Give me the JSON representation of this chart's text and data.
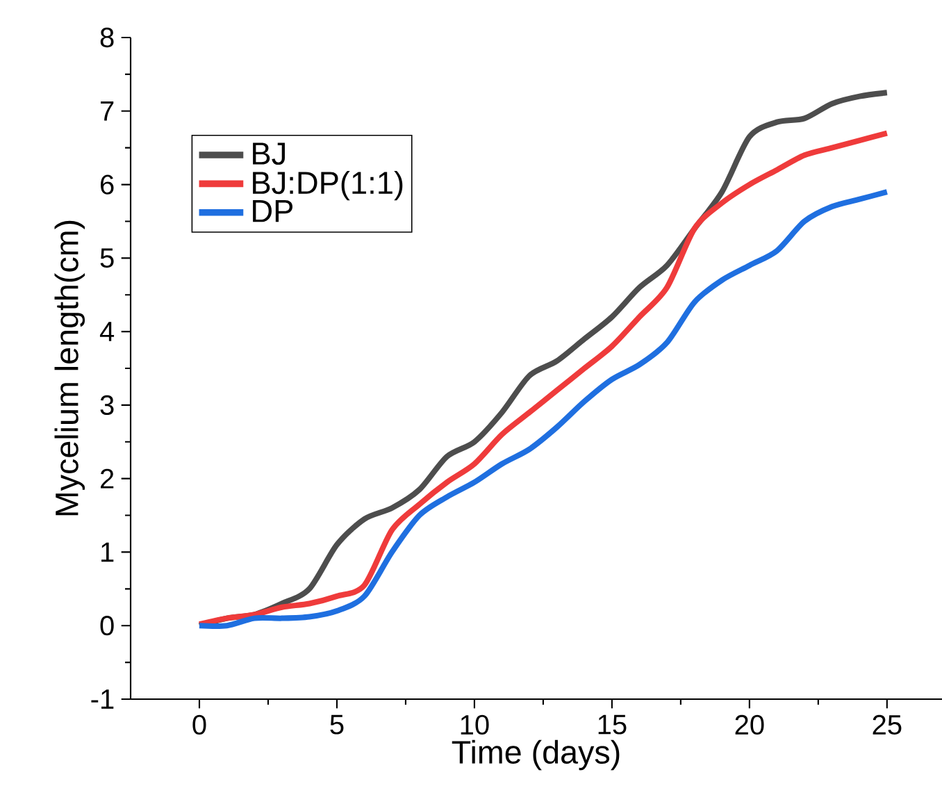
{
  "chart_data": {
    "type": "line",
    "xlabel": "Time (days)",
    "ylabel": "Mycelium length(cm)",
    "x": [
      0,
      1,
      2,
      3,
      4,
      5,
      6,
      7,
      8,
      9,
      10,
      11,
      12,
      13,
      14,
      15,
      16,
      17,
      18,
      19,
      20,
      21,
      22,
      23,
      24,
      25
    ],
    "series": [
      {
        "name": "BJ",
        "color": "#4d4d4d",
        "values": [
          0,
          0.1,
          0.15,
          0.3,
          0.5,
          1.1,
          1.45,
          1.6,
          1.85,
          2.3,
          2.5,
          2.9,
          3.4,
          3.6,
          3.9,
          4.2,
          4.6,
          4.9,
          5.4,
          5.9,
          6.65,
          6.85,
          6.9,
          7.1,
          7.2,
          7.25
        ]
      },
      {
        "name": "BJ:DP(1:1)",
        "color": "#ef3b3b",
        "values": [
          0.02,
          0.1,
          0.15,
          0.25,
          0.3,
          0.4,
          0.55,
          1.3,
          1.65,
          1.95,
          2.2,
          2.6,
          2.9,
          3.2,
          3.5,
          3.8,
          4.2,
          4.6,
          5.4,
          5.75,
          6.0,
          6.2,
          6.4,
          6.5,
          6.6,
          6.7
        ]
      },
      {
        "name": "DP",
        "color": "#1f6fe0",
        "values": [
          0,
          0.0,
          0.1,
          0.1,
          0.12,
          0.2,
          0.4,
          1.0,
          1.5,
          1.75,
          1.95,
          2.2,
          2.4,
          2.7,
          3.05,
          3.35,
          3.55,
          3.85,
          4.4,
          4.7,
          4.9,
          5.1,
          5.5,
          5.7,
          5.8,
          5.9
        ]
      }
    ],
    "xlim": [
      -2.5,
      27
    ],
    "ylim": [
      -1,
      8
    ],
    "xticks": [
      0,
      5,
      10,
      15,
      20,
      25
    ],
    "yticks": [
      -1,
      0,
      1,
      2,
      3,
      4,
      5,
      6,
      7,
      8
    ],
    "legend": "top left",
    "marker": "none",
    "line_style": "solid",
    "grid": false
  }
}
